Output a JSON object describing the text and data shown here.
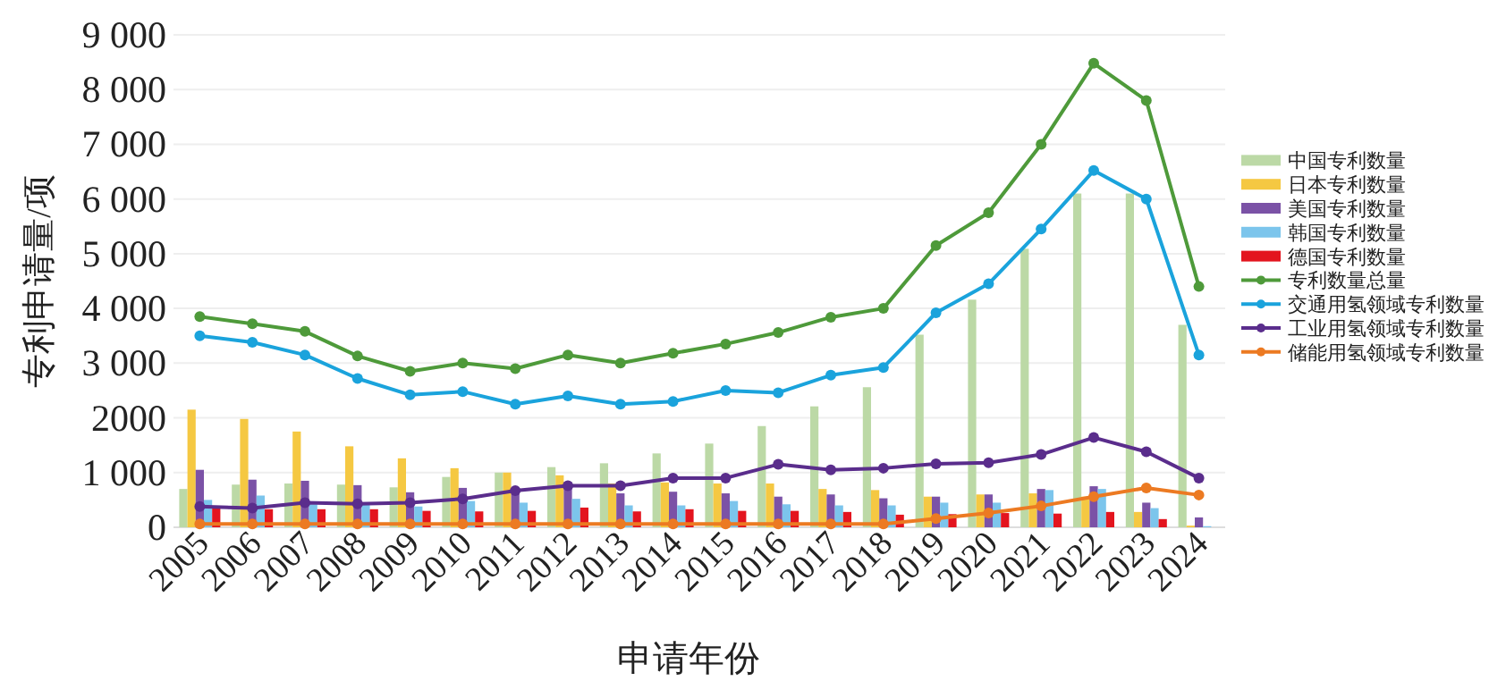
{
  "chart_data": {
    "type": "bar",
    "xlabel": "申请年份",
    "ylabel": "专利申请量/项",
    "categories": [
      "2005",
      "2006",
      "2007",
      "2008",
      "2009",
      "2010",
      "2011",
      "2012",
      "2013",
      "2014",
      "2015",
      "2016",
      "2017",
      "2018",
      "2019",
      "2020",
      "2021",
      "2022",
      "2023",
      "2024"
    ],
    "series": [
      {
        "name": "中国专利数量",
        "color": "#bcd9a6",
        "values": [
          700,
          780,
          800,
          780,
          730,
          920,
          1000,
          1100,
          1170,
          1350,
          1530,
          1850,
          2210,
          2560,
          3520,
          4160,
          5090,
          6100,
          6100,
          3700
        ]
      },
      {
        "name": "日本专利数量",
        "color": "#f5c842",
        "values": [
          2150,
          1980,
          1750,
          1480,
          1260,
          1080,
          1000,
          950,
          800,
          820,
          800,
          800,
          700,
          680,
          560,
          600,
          620,
          560,
          280,
          30
        ]
      },
      {
        "name": "美国专利数量",
        "color": "#7b52a6",
        "values": [
          1050,
          870,
          850,
          770,
          640,
          720,
          620,
          800,
          620,
          650,
          620,
          560,
          600,
          530,
          560,
          600,
          700,
          750,
          450,
          180
        ]
      },
      {
        "name": "韩国专利数量",
        "color": "#7cc5ec",
        "values": [
          500,
          580,
          420,
          420,
          380,
          480,
          450,
          520,
          400,
          400,
          480,
          420,
          400,
          400,
          450,
          450,
          680,
          700,
          350,
          20
        ]
      },
      {
        "name": "德国专利数量",
        "color": "#e3141e",
        "values": [
          350,
          330,
          330,
          330,
          300,
          290,
          300,
          360,
          290,
          330,
          300,
          300,
          280,
          230,
          240,
          260,
          250,
          280,
          150,
          0
        ]
      },
      {
        "name": "专利数量总量",
        "type": "line",
        "color": "#4e9a3a",
        "values": [
          3850,
          3720,
          3580,
          3130,
          2850,
          3000,
          2900,
          3150,
          3000,
          3180,
          3350,
          3560,
          3840,
          4000,
          5150,
          5750,
          7000,
          8480,
          7800,
          4400
        ]
      },
      {
        "name": "交通用氢领域专利数量",
        "type": "line",
        "color": "#1aa3dc",
        "values": [
          3500,
          3380,
          3150,
          2720,
          2420,
          2480,
          2250,
          2400,
          2250,
          2300,
          2500,
          2460,
          2780,
          2920,
          3920,
          4450,
          5450,
          6520,
          6000,
          3150
        ]
      },
      {
        "name": "工业用氢领域专利数量",
        "type": "line",
        "color": "#5a2d8c",
        "values": [
          380,
          350,
          450,
          430,
          450,
          520,
          670,
          760,
          760,
          900,
          900,
          1150,
          1050,
          1080,
          1160,
          1180,
          1330,
          1640,
          1380,
          900
        ]
      },
      {
        "name": "储能用氢领域专利数量",
        "type": "line",
        "color": "#ec7a22",
        "values": [
          60,
          60,
          60,
          60,
          60,
          60,
          60,
          60,
          60,
          60,
          60,
          60,
          60,
          60,
          160,
          260,
          390,
          560,
          720,
          590
        ]
      }
    ],
    "ylim": [
      0,
      9000
    ],
    "yticks": [
      0,
      {
        "value": 1000,
        "label": "1 000"
      },
      2000,
      {
        "value": 3000,
        "label": "3 000"
      },
      {
        "value": 4000,
        "label": "4 000"
      },
      {
        "value": 5000,
        "label": "5 000"
      },
      {
        "value": 6000,
        "label": "6 000"
      },
      {
        "value": 7000,
        "label": "7 000"
      },
      {
        "value": 8000,
        "label": "8 000"
      },
      {
        "value": 9000,
        "label": "9 000"
      }
    ],
    "grid": "y",
    "legend": "right",
    "marker": "circle"
  }
}
